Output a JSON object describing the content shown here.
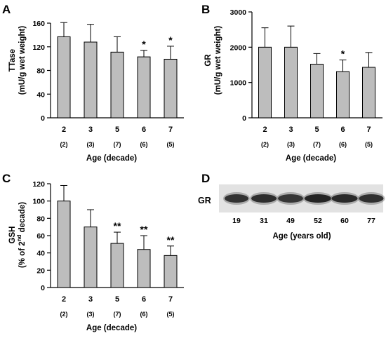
{
  "chart_data": [
    {
      "panel": "A",
      "type": "bar",
      "categories": [
        "2",
        "3",
        "5",
        "6",
        "7"
      ],
      "n_labels": [
        "(2)",
        "(3)",
        "(7)",
        "(6)",
        "(5)"
      ],
      "values": [
        137,
        128,
        111,
        103,
        99
      ],
      "errors": [
        24,
        30,
        26,
        11,
        22
      ],
      "significance": [
        "",
        "",
        "",
        "*",
        "*"
      ],
      "ylabel_line1": "TTase",
      "ylabel_line2": "(mU/g wet weight)",
      "xlabel": "Age (decade)",
      "ylim": [
        0,
        160
      ],
      "yticks": [
        0,
        40,
        80,
        120,
        160
      ],
      "bar_color": "#bdbdbd"
    },
    {
      "panel": "B",
      "type": "bar",
      "categories": [
        "2",
        "3",
        "5",
        "6",
        "7"
      ],
      "n_labels": [
        "(2)",
        "(3)",
        "(7)",
        "(6)",
        "(5)"
      ],
      "values": [
        2000,
        2000,
        1520,
        1310,
        1430
      ],
      "errors": [
        550,
        600,
        300,
        330,
        420
      ],
      "significance": [
        "",
        "",
        "",
        "*",
        ""
      ],
      "ylabel_line1": "GR",
      "ylabel_line2": "(mU/g wet weight)",
      "xlabel": "Age (decade)",
      "ylim": [
        0,
        3000
      ],
      "yticks": [
        0,
        1000,
        2000,
        3000
      ],
      "bar_color": "#bdbdbd"
    },
    {
      "panel": "C",
      "type": "bar",
      "categories": [
        "2",
        "3",
        "5",
        "6",
        "7"
      ],
      "n_labels": [
        "(2)",
        "(3)",
        "(7)",
        "(6)",
        "(5)"
      ],
      "values": [
        100,
        70,
        51,
        44,
        37
      ],
      "errors": [
        18,
        20,
        13,
        16,
        11
      ],
      "significance": [
        "",
        "",
        "**",
        "**",
        "**"
      ],
      "ylabel_line1": "GSH",
      "ylabel_line2_pre": "(% of 2",
      "ylabel_line2_sup": "nd",
      "ylabel_line2_post": " decade)",
      "xlabel": "Age (decade)",
      "ylim": [
        0,
        120
      ],
      "yticks": [
        0,
        20,
        40,
        60,
        80,
        100,
        120
      ],
      "bar_color": "#bdbdbd"
    }
  ],
  "blot": {
    "panel": "D",
    "band_label": "GR",
    "lanes": [
      "19",
      "31",
      "49",
      "52",
      "60",
      "77"
    ],
    "xlabel": "Age (years old)"
  }
}
